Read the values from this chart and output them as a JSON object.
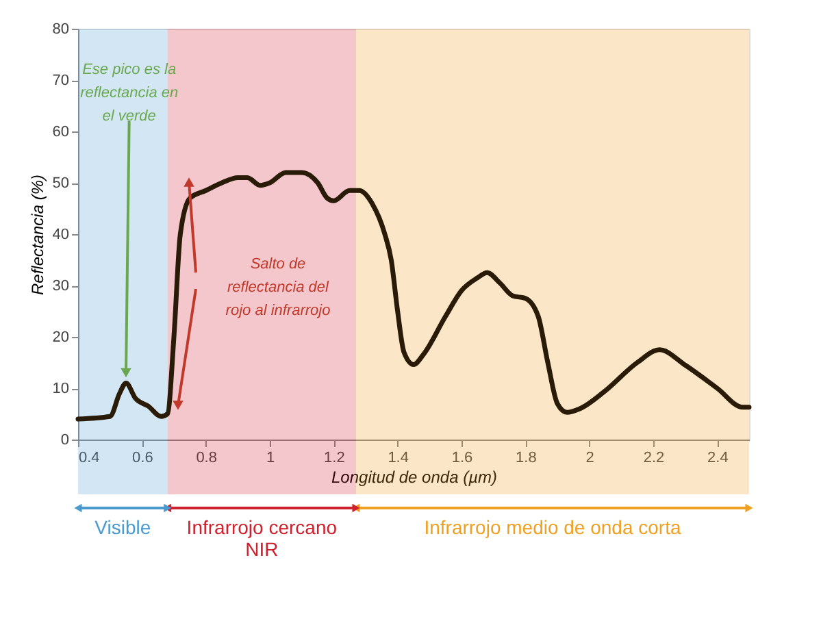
{
  "chart_data": {
    "type": "line",
    "xlabel": "Longitud de onda (µm)",
    "ylabel": "Reflectancia (%)",
    "x": [
      0.4,
      0.5,
      0.53,
      0.55,
      0.58,
      0.62,
      0.66,
      0.68,
      0.7,
      0.72,
      0.75,
      0.8,
      0.85,
      0.9,
      0.93,
      0.97,
      1.0,
      1.05,
      1.1,
      1.15,
      1.18,
      1.2,
      1.25,
      1.28,
      1.32,
      1.36,
      1.38,
      1.4,
      1.42,
      1.45,
      1.48,
      1.55,
      1.6,
      1.65,
      1.68,
      1.72,
      1.76,
      1.8,
      1.84,
      1.87,
      1.9,
      1.93,
      1.97,
      2.05,
      2.15,
      2.22,
      2.3,
      2.4,
      2.48,
      2.5
    ],
    "series": [
      {
        "color": "#2a1a08",
        "values": [
          4,
          4.5,
          9,
          11,
          8,
          6.5,
          4.5,
          5,
          20,
          40,
          47,
          48.5,
          50,
          51,
          51,
          49.5,
          50,
          52,
          52,
          50,
          47,
          46.5,
          48.5,
          48.5,
          46,
          40,
          35,
          25,
          17,
          14.6,
          16.5,
          24,
          29,
          31.5,
          32.5,
          30.5,
          28,
          27.5,
          24,
          15,
          7,
          5.3,
          6,
          9.5,
          15,
          17.5,
          14.5,
          10,
          6.3,
          6.3
        ]
      }
    ],
    "xlim": [
      0.4,
      2.5
    ],
    "ylim": [
      0,
      80
    ],
    "xticks": [
      0.4,
      0.6,
      0.8,
      1,
      1.2,
      1.4,
      1.6,
      1.8,
      2,
      2.2,
      2.4
    ],
    "yticks": [
      0,
      10,
      20,
      30,
      40,
      50,
      60,
      70,
      80
    ],
    "grid": false,
    "legend": "bottom",
    "marker": "none",
    "line_style": "solid",
    "bands": [
      {
        "axis": "x",
        "from": 0.4,
        "to": 0.68,
        "label": "Visible",
        "color": "#4a9ad0"
      },
      {
        "axis": "x",
        "from": 0.68,
        "to": 1.27,
        "label": "Infrarrojo cercano\nNIR",
        "color": "#d0202e"
      },
      {
        "axis": "x",
        "from": 1.27,
        "to": 2.5,
        "label": "Infrarrojo medio de onda corta",
        "color": "#f0a020"
      }
    ],
    "annotations": [
      {
        "text": "Ese pico es la\nreflectancia en\nel verde",
        "x": 0.55,
        "y": 11
      },
      "Salto de\nreflectancia del\nrojo al infrarrojo"
    ]
  }
}
